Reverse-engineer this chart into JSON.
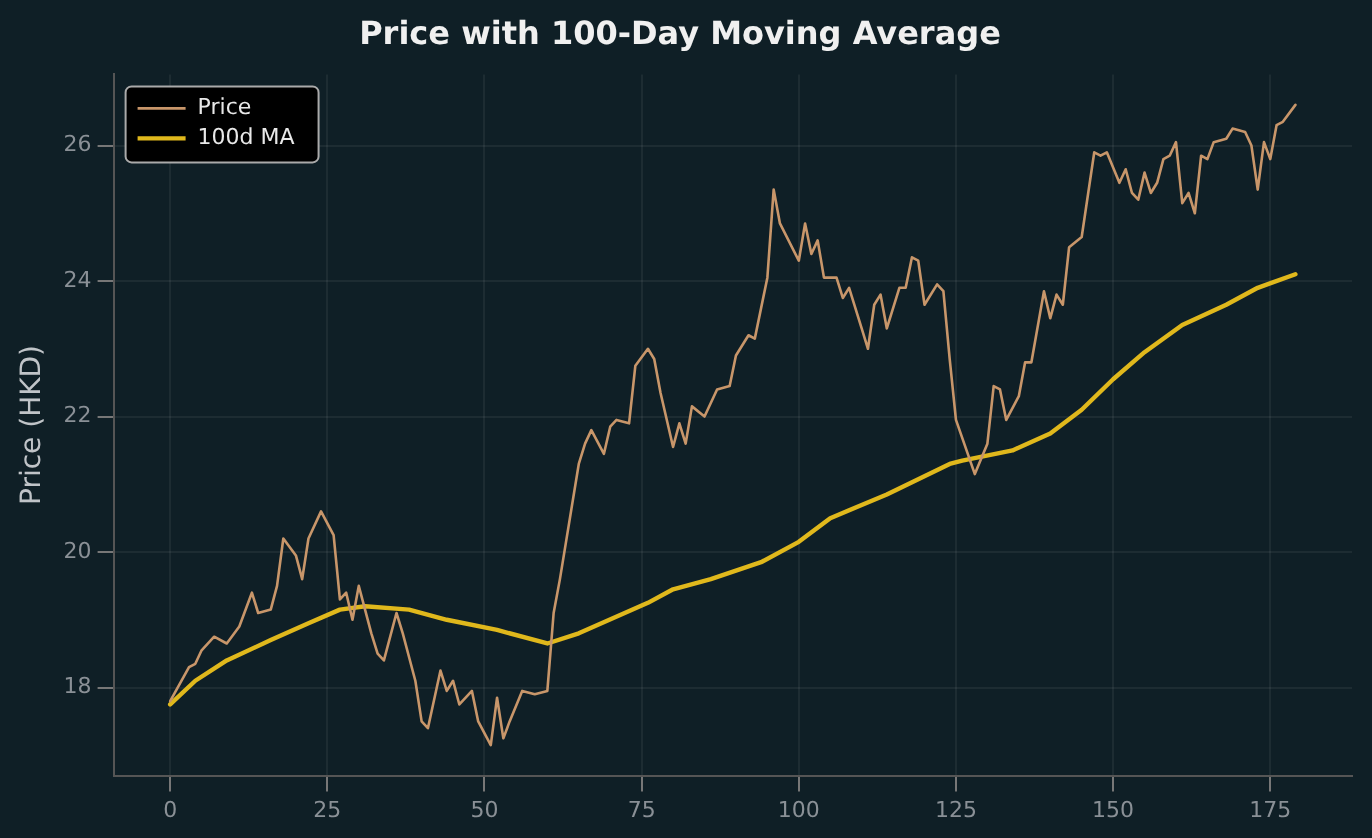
{
  "chart_data": {
    "type": "line",
    "title": "Price with 100-Day Moving Average",
    "ylabel": "Price (HKD)",
    "xlim": [
      -9,
      188
    ],
    "xticks": [
      0,
      25,
      50,
      75,
      100,
      125,
      150,
      175
    ],
    "ylim": [
      16.7,
      27.05
    ],
    "yticks": [
      18,
      20,
      22,
      24,
      26
    ],
    "grid": true,
    "legend": "top left",
    "marker": "none",
    "line_style": "solid",
    "series": [
      {
        "name": "Price",
        "color": "#c8966a",
        "x": [
          0,
          3,
          4,
          5,
          7,
          9,
          11,
          13,
          14,
          16,
          17,
          18,
          20,
          21,
          22,
          24,
          26,
          27,
          28,
          29,
          30,
          32,
          33,
          34,
          36,
          37,
          39,
          40,
          41,
          43,
          44,
          45,
          46,
          48,
          49,
          51,
          52,
          53,
          54,
          56,
          58,
          60,
          61,
          62,
          65,
          66,
          67,
          69,
          70,
          71,
          73,
          74,
          76,
          77,
          78,
          80,
          81,
          82,
          83,
          85,
          87,
          89,
          90,
          92,
          93,
          95,
          96,
          97,
          100,
          101,
          102,
          103,
          104,
          106,
          107,
          108,
          110,
          111,
          112,
          113,
          114,
          116,
          117,
          118,
          119,
          120,
          122,
          123,
          124,
          125,
          128,
          130,
          131,
          132,
          133,
          135,
          136,
          137,
          139,
          140,
          141,
          142,
          143,
          145,
          147,
          148,
          149,
          151,
          152,
          153,
          154,
          155,
          156,
          157,
          158,
          159,
          160,
          161,
          162,
          163,
          164,
          165,
          166,
          168,
          169,
          171,
          172,
          173,
          174,
          175,
          176,
          177,
          179
        ],
        "values": [
          17.8,
          18.3,
          18.35,
          18.55,
          18.75,
          18.65,
          18.9,
          19.4,
          19.1,
          19.15,
          19.5,
          20.2,
          19.95,
          19.6,
          20.2,
          20.6,
          20.25,
          19.3,
          19.4,
          19.0,
          19.5,
          18.8,
          18.5,
          18.4,
          19.1,
          18.8,
          18.1,
          17.5,
          17.4,
          18.25,
          17.95,
          18.1,
          17.75,
          17.95,
          17.5,
          17.15,
          17.85,
          17.25,
          17.5,
          17.95,
          17.9,
          17.95,
          19.1,
          19.6,
          21.3,
          21.6,
          21.8,
          21.45,
          21.85,
          21.95,
          21.9,
          22.75,
          23.0,
          22.85,
          22.35,
          21.55,
          21.9,
          21.6,
          22.15,
          22.0,
          22.4,
          22.45,
          22.9,
          23.2,
          23.15,
          24.05,
          25.35,
          24.85,
          24.3,
          24.85,
          24.4,
          24.6,
          24.05,
          24.05,
          23.75,
          23.9,
          23.3,
          23.0,
          23.65,
          23.8,
          23.3,
          23.9,
          23.9,
          24.35,
          24.3,
          23.65,
          23.95,
          23.85,
          22.85,
          21.95,
          21.15,
          21.6,
          22.45,
          22.4,
          21.95,
          22.3,
          22.8,
          22.8,
          23.85,
          23.45,
          23.8,
          23.65,
          24.5,
          24.65,
          25.9,
          25.85,
          25.9,
          25.45,
          25.65,
          25.3,
          25.2,
          25.6,
          25.3,
          25.45,
          25.8,
          25.85,
          26.05,
          25.15,
          25.3,
          25.0,
          25.85,
          25.8,
          26.05,
          26.1,
          26.25,
          26.2,
          26.0,
          25.35,
          26.05,
          25.8,
          26.3,
          26.35,
          26.6
        ]
      },
      {
        "name": "100d MA",
        "color": "#e0b81c",
        "x": [
          0,
          4,
          9,
          16,
          22,
          27,
          31,
          38,
          44,
          52,
          60,
          65,
          76,
          80,
          86,
          94,
          100,
          105,
          114,
          124,
          126,
          134,
          140,
          145,
          150,
          155,
          161,
          168,
          173,
          179
        ],
        "values": [
          17.75,
          18.1,
          18.4,
          18.7,
          18.95,
          19.15,
          19.2,
          19.15,
          19.0,
          18.85,
          18.65,
          18.8,
          19.25,
          19.45,
          19.6,
          19.85,
          20.15,
          20.5,
          20.85,
          21.3,
          21.35,
          21.5,
          21.75,
          22.1,
          22.55,
          22.95,
          23.35,
          23.65,
          23.9,
          24.1
        ]
      }
    ]
  }
}
